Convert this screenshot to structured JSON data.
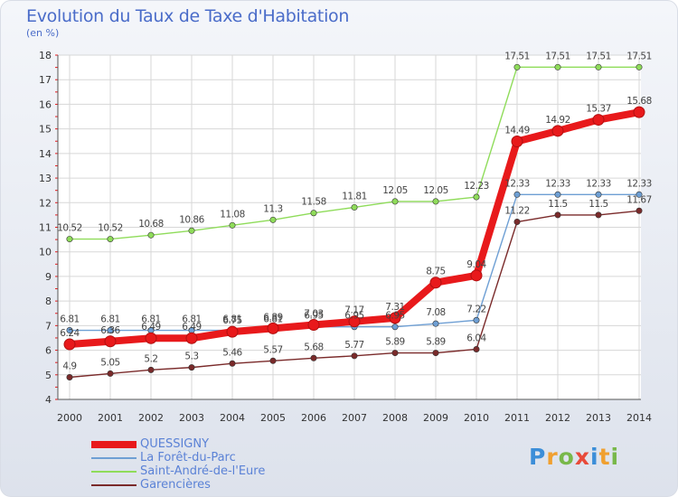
{
  "header": {
    "title": "Evolution du Taux de Taxe d'Habitation",
    "unit": "(en %)"
  },
  "logo_text": "Proxiti",
  "chart_data": {
    "type": "line",
    "title": "Evolution du Taux de Taxe d'Habitation",
    "ylabel": "(en %)",
    "xlabel": "",
    "x": [
      "2000",
      "2001",
      "2002",
      "2003",
      "2004",
      "2005",
      "2006",
      "2007",
      "2008",
      "2009",
      "2010",
      "2011",
      "2012",
      "2013",
      "2014"
    ],
    "ylim": [
      4,
      18
    ],
    "yticks": [
      4,
      5,
      6,
      7,
      8,
      9,
      10,
      11,
      12,
      13,
      14,
      15,
      16,
      17,
      18
    ],
    "grid": true,
    "legend_position": "bottom-left",
    "series": [
      {
        "name": "QUESSIGNY",
        "color": "#e8191b",
        "values": [
          6.24,
          6.36,
          6.49,
          6.49,
          6.75,
          6.89,
          7.03,
          7.17,
          7.31,
          8.75,
          9.04,
          14.49,
          14.92,
          15.37,
          15.68
        ],
        "labels": [
          "6.24",
          "6.36",
          "6.49",
          "6.49",
          "6.75",
          "6.89",
          "7.03",
          "7.17",
          "7.31",
          "8.75",
          "9.04",
          "14.49",
          "14.92",
          "15.37",
          "15.68"
        ]
      },
      {
        "name": "La Forêt-du-Parc",
        "color": "#6e9fd4",
        "values": [
          6.81,
          6.81,
          6.81,
          6.81,
          6.81,
          6.81,
          6.95,
          6.95,
          6.95,
          7.08,
          7.22,
          12.33,
          12.33,
          12.33,
          12.33
        ],
        "labels": [
          "6.81",
          "6.81",
          "6.81",
          "6.81",
          "6.81",
          "6.81",
          "6.95",
          "6.95",
          "6.95",
          "7.08",
          "7.22",
          "12.33",
          "12.33",
          "12.33",
          "12.33"
        ]
      },
      {
        "name": "Saint-André-de-l'Eure",
        "color": "#8fdc5a",
        "values": [
          10.52,
          10.52,
          10.68,
          10.86,
          11.08,
          11.3,
          11.58,
          11.81,
          12.05,
          12.05,
          12.23,
          17.51,
          17.51,
          17.51,
          17.51
        ],
        "labels": [
          "10.52",
          "10.52",
          "10.68",
          "10.86",
          "11.08",
          "11.3",
          "11.58",
          "11.81",
          "12.05",
          "12.05",
          "12.23",
          "17.51",
          "17.51",
          "17.51",
          "17.51"
        ]
      },
      {
        "name": "Garencières",
        "color": "#7a2a2a",
        "values": [
          4.9,
          5.05,
          5.2,
          5.3,
          5.46,
          5.57,
          5.68,
          5.77,
          5.89,
          5.89,
          6.04,
          11.22,
          11.5,
          11.5,
          11.67
        ],
        "labels": [
          "4.9",
          "5.05",
          "5.2",
          "5.3",
          "5.46",
          "5.57",
          "5.68",
          "5.77",
          "5.89",
          "5.89",
          "6.04",
          "11.22",
          "11.5",
          "11.5",
          "11.67"
        ]
      }
    ]
  }
}
